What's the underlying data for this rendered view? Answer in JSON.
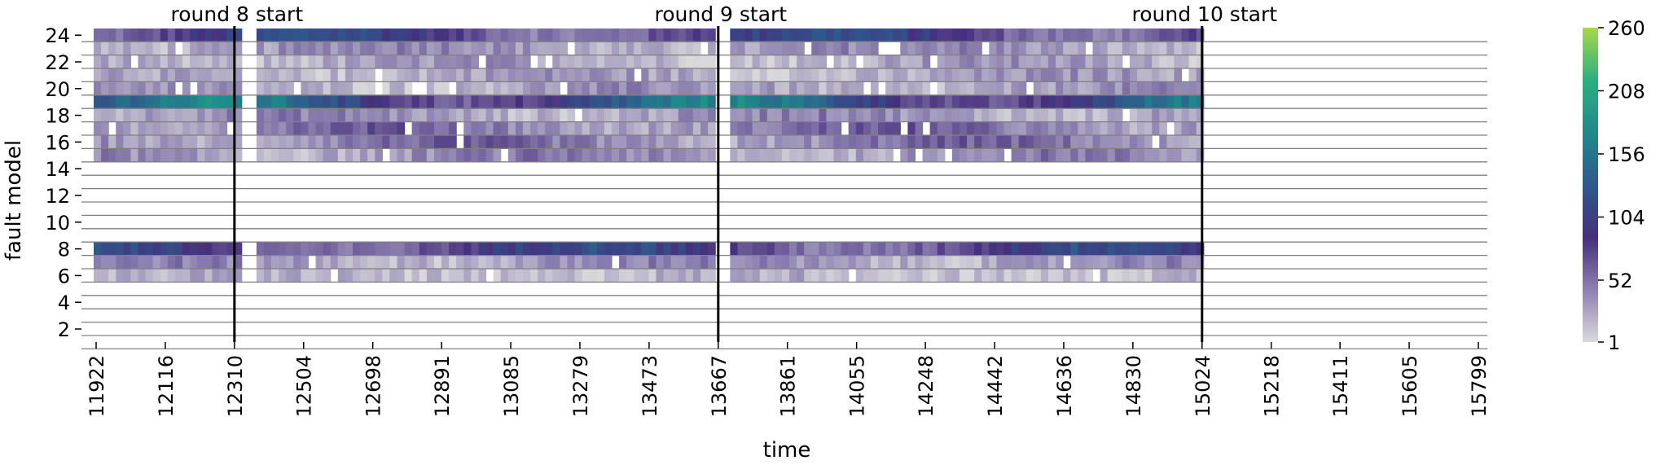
{
  "chart_data": {
    "type": "heatmap",
    "xlabel": "time",
    "ylabel": "fault model",
    "x_ticks": [
      "11922",
      "12116",
      "12310",
      "12504",
      "12698",
      "12891",
      "13085",
      "13279",
      "13473",
      "13667",
      "13861",
      "14055",
      "14248",
      "14442",
      "14636",
      "14830",
      "15024",
      "15218",
      "15411",
      "15605",
      "15799"
    ],
    "y_ticks": [
      "2",
      "4",
      "6",
      "8",
      "10",
      "12",
      "14",
      "16",
      "18",
      "20",
      "22",
      "24"
    ],
    "y_range": [
      1,
      24
    ],
    "x_range": [
      11922,
      15799
    ],
    "colorbar": {
      "ticks": [
        "1",
        "52",
        "104",
        "156",
        "208",
        "260"
      ],
      "range": [
        1,
        260
      ],
      "colors": [
        "#d9d9dc",
        "#8c80b0",
        "#462f7c",
        "#2e5a8c",
        "#1f8a8b",
        "#2bb07f",
        "#a7d84a"
      ]
    },
    "annotations": [
      {
        "label": "round 8 start",
        "x": 12310
      },
      {
        "label": "round 9 start",
        "x": 13667
      },
      {
        "label": "round 10 start",
        "x": 15024
      }
    ],
    "data_extent": {
      "x_start": 11922,
      "x_end": 15024
    },
    "gaps": [
      12345,
      13685
    ],
    "rows": [
      {
        "model": 24,
        "level": 0.32
      },
      {
        "model": 23,
        "level": 0.12
      },
      {
        "model": 22,
        "level": 0.09
      },
      {
        "model": 21,
        "level": 0.09
      },
      {
        "model": 20,
        "level": 0.1
      },
      {
        "model": 19,
        "level": 0.45
      },
      {
        "model": 18,
        "level": 0.12
      },
      {
        "model": 17,
        "level": 0.17
      },
      {
        "model": 16,
        "level": 0.16
      },
      {
        "model": 15,
        "level": 0.13
      },
      {
        "model": 8,
        "level": 0.32
      },
      {
        "model": 7,
        "level": 0.12
      },
      {
        "model": 6,
        "level": 0.06
      }
    ]
  }
}
